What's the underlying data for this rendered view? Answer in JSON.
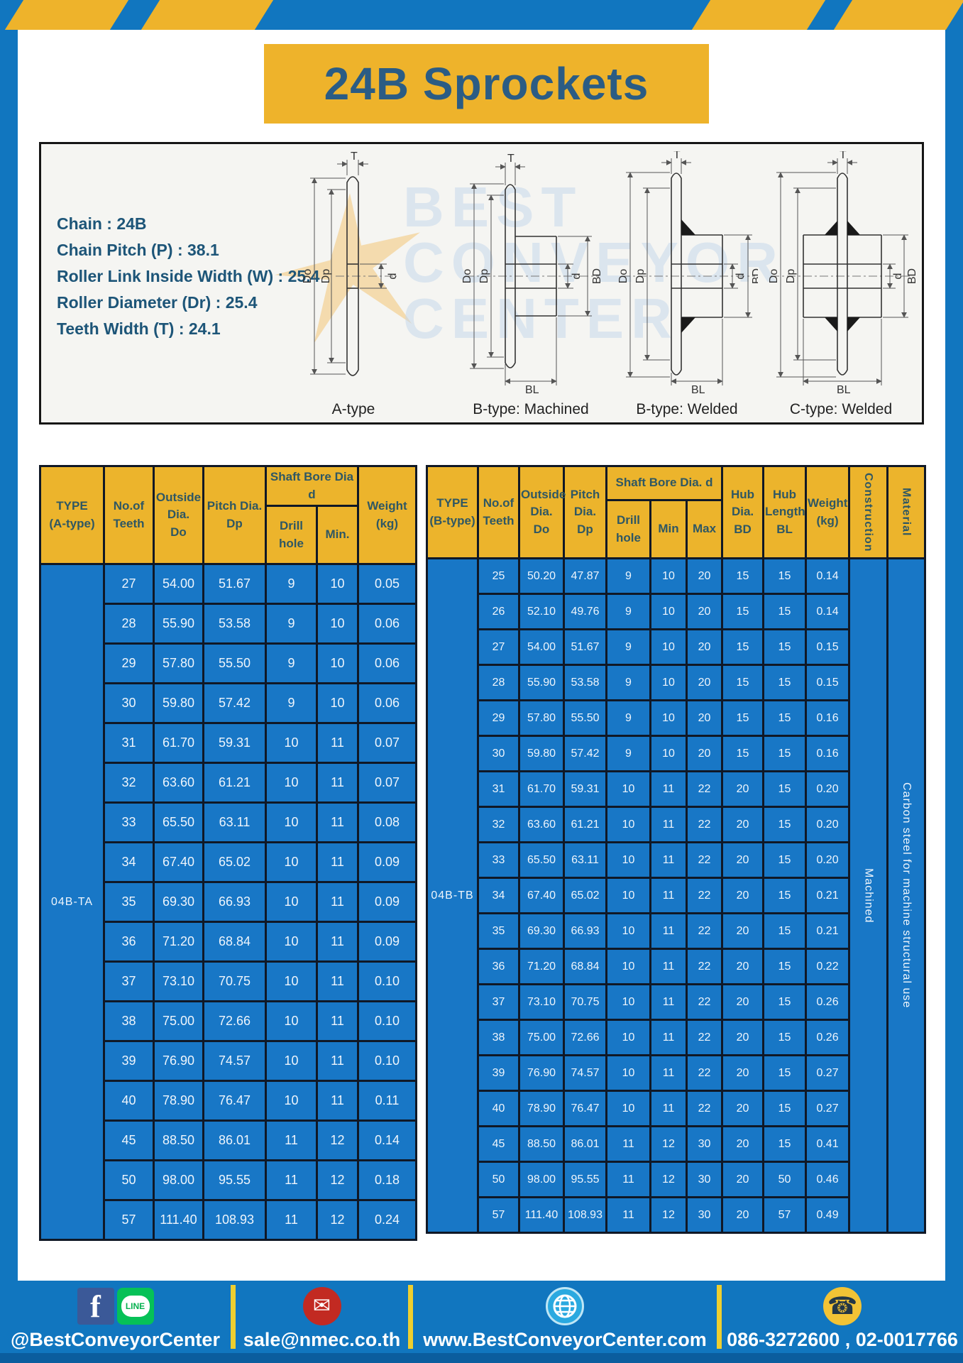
{
  "title": "24B Sprockets",
  "specs": [
    "Chain  : 24B",
    "Chain Pitch (P)  :  38.1",
    "Roller Link Inside Width (W)  :  25.4",
    "Roller Diameter (Dr)  : 25.4",
    "Teeth Width (T)  :  24.1"
  ],
  "watermark": {
    "line1": "BEST",
    "line2": "CONVEYOR",
    "line3": "CENTER"
  },
  "diagrams": [
    {
      "label": "A-type"
    },
    {
      "label": "B-type: Machined"
    },
    {
      "label": "B-type: Welded"
    },
    {
      "label": "C-type: Welded"
    }
  ],
  "dim_labels": {
    "T": "T",
    "Do": "Do",
    "Dp": "Dp",
    "d": "d",
    "BD": "BD",
    "BL": "BL"
  },
  "table_a": {
    "headers": {
      "type": "TYPE\n(A-type)",
      "teeth": "No.of\nTeeth",
      "outside": "Outside\nDia.\nDo",
      "pitch": "Pitch Dia.\nDp",
      "shaft_bore": "Shaft Bore Dia d",
      "drill": "Drill hole",
      "min": "Min.",
      "weight": "Weight\n(kg)"
    },
    "type_value": "04B-TA",
    "rows": [
      [
        "27",
        "54.00",
        "51.67",
        "9",
        "10",
        "0.05"
      ],
      [
        "28",
        "55.90",
        "53.58",
        "9",
        "10",
        "0.06"
      ],
      [
        "29",
        "57.80",
        "55.50",
        "9",
        "10",
        "0.06"
      ],
      [
        "30",
        "59.80",
        "57.42",
        "9",
        "10",
        "0.06"
      ],
      [
        "31",
        "61.70",
        "59.31",
        "10",
        "11",
        "0.07"
      ],
      [
        "32",
        "63.60",
        "61.21",
        "10",
        "11",
        "0.07"
      ],
      [
        "33",
        "65.50",
        "63.11",
        "10",
        "11",
        "0.08"
      ],
      [
        "34",
        "67.40",
        "65.02",
        "10",
        "11",
        "0.09"
      ],
      [
        "35",
        "69.30",
        "66.93",
        "10",
        "11",
        "0.09"
      ],
      [
        "36",
        "71.20",
        "68.84",
        "10",
        "11",
        "0.09"
      ],
      [
        "37",
        "73.10",
        "70.75",
        "10",
        "11",
        "0.10"
      ],
      [
        "38",
        "75.00",
        "72.66",
        "10",
        "11",
        "0.10"
      ],
      [
        "39",
        "76.90",
        "74.57",
        "10",
        "11",
        "0.10"
      ],
      [
        "40",
        "78.90",
        "76.47",
        "10",
        "11",
        "0.11"
      ],
      [
        "45",
        "88.50",
        "86.01",
        "11",
        "12",
        "0.14"
      ],
      [
        "50",
        "98.00",
        "95.55",
        "11",
        "12",
        "0.18"
      ],
      [
        "57",
        "111.40",
        "108.93",
        "11",
        "12",
        "0.24"
      ]
    ]
  },
  "table_b": {
    "headers": {
      "type": "TYPE\n(B-type)",
      "teeth": "No.of\nTeeth",
      "outside": "Outside\nDia.\nDo",
      "pitch": "Pitch\nDia.\nDp",
      "shaft_bore": "Shaft Bore Dia.  d",
      "drill": "Drill hole",
      "min": "Min",
      "max": "Max",
      "hub_dia": "Hub\nDia.\nBD",
      "hub_len": "Hub\nLength\nBL",
      "weight": "Weight\n(kg)",
      "construction": "Construction",
      "material": "Material"
    },
    "type_value": "04B-TB",
    "construction_value": "Machined",
    "material_value": "Carbon steel for machine structural use",
    "rows": [
      [
        "25",
        "50.20",
        "47.87",
        "9",
        "10",
        "20",
        "15",
        "15",
        "0.14"
      ],
      [
        "26",
        "52.10",
        "49.76",
        "9",
        "10",
        "20",
        "15",
        "15",
        "0.14"
      ],
      [
        "27",
        "54.00",
        "51.67",
        "9",
        "10",
        "20",
        "15",
        "15",
        "0.15"
      ],
      [
        "28",
        "55.90",
        "53.58",
        "9",
        "10",
        "20",
        "15",
        "15",
        "0.15"
      ],
      [
        "29",
        "57.80",
        "55.50",
        "9",
        "10",
        "20",
        "15",
        "15",
        "0.16"
      ],
      [
        "30",
        "59.80",
        "57.42",
        "9",
        "10",
        "20",
        "15",
        "15",
        "0.16"
      ],
      [
        "31",
        "61.70",
        "59.31",
        "10",
        "11",
        "22",
        "20",
        "15",
        "0.20"
      ],
      [
        "32",
        "63.60",
        "61.21",
        "10",
        "11",
        "22",
        "20",
        "15",
        "0.20"
      ],
      [
        "33",
        "65.50",
        "63.11",
        "10",
        "11",
        "22",
        "20",
        "15",
        "0.20"
      ],
      [
        "34",
        "67.40",
        "65.02",
        "10",
        "11",
        "22",
        "20",
        "15",
        "0.21"
      ],
      [
        "35",
        "69.30",
        "66.93",
        "10",
        "11",
        "22",
        "20",
        "15",
        "0.21"
      ],
      [
        "36",
        "71.20",
        "68.84",
        "10",
        "11",
        "22",
        "20",
        "15",
        "0.22"
      ],
      [
        "37",
        "73.10",
        "70.75",
        "10",
        "11",
        "22",
        "20",
        "15",
        "0.26"
      ],
      [
        "38",
        "75.00",
        "72.66",
        "10",
        "11",
        "22",
        "20",
        "15",
        "0.26"
      ],
      [
        "39",
        "76.90",
        "74.57",
        "10",
        "11",
        "22",
        "20",
        "15",
        "0.27"
      ],
      [
        "40",
        "78.90",
        "76.47",
        "10",
        "11",
        "22",
        "20",
        "15",
        "0.27"
      ],
      [
        "45",
        "88.50",
        "86.01",
        "11",
        "12",
        "30",
        "20",
        "15",
        "0.41"
      ],
      [
        "50",
        "98.00",
        "95.55",
        "11",
        "12",
        "30",
        "20",
        "50",
        "0.46"
      ],
      [
        "57",
        "111.40",
        "108.93",
        "11",
        "12",
        "30",
        "20",
        "57",
        "0.49"
      ]
    ]
  },
  "footer": {
    "social_text": "@BestConveyorCenter",
    "line_label": "LINE",
    "email": "sale@nmec.co.th",
    "website": "www.BestConveyorCenter.com",
    "phone": "086-3272600 , 02-0017766"
  },
  "colors": {
    "frame_blue": "#1176bf",
    "accent_yellow": "#eeb32b",
    "cell_blue": "#1877c6",
    "header_yellow": "#ecb42c",
    "title_text": "#2b5c84"
  }
}
